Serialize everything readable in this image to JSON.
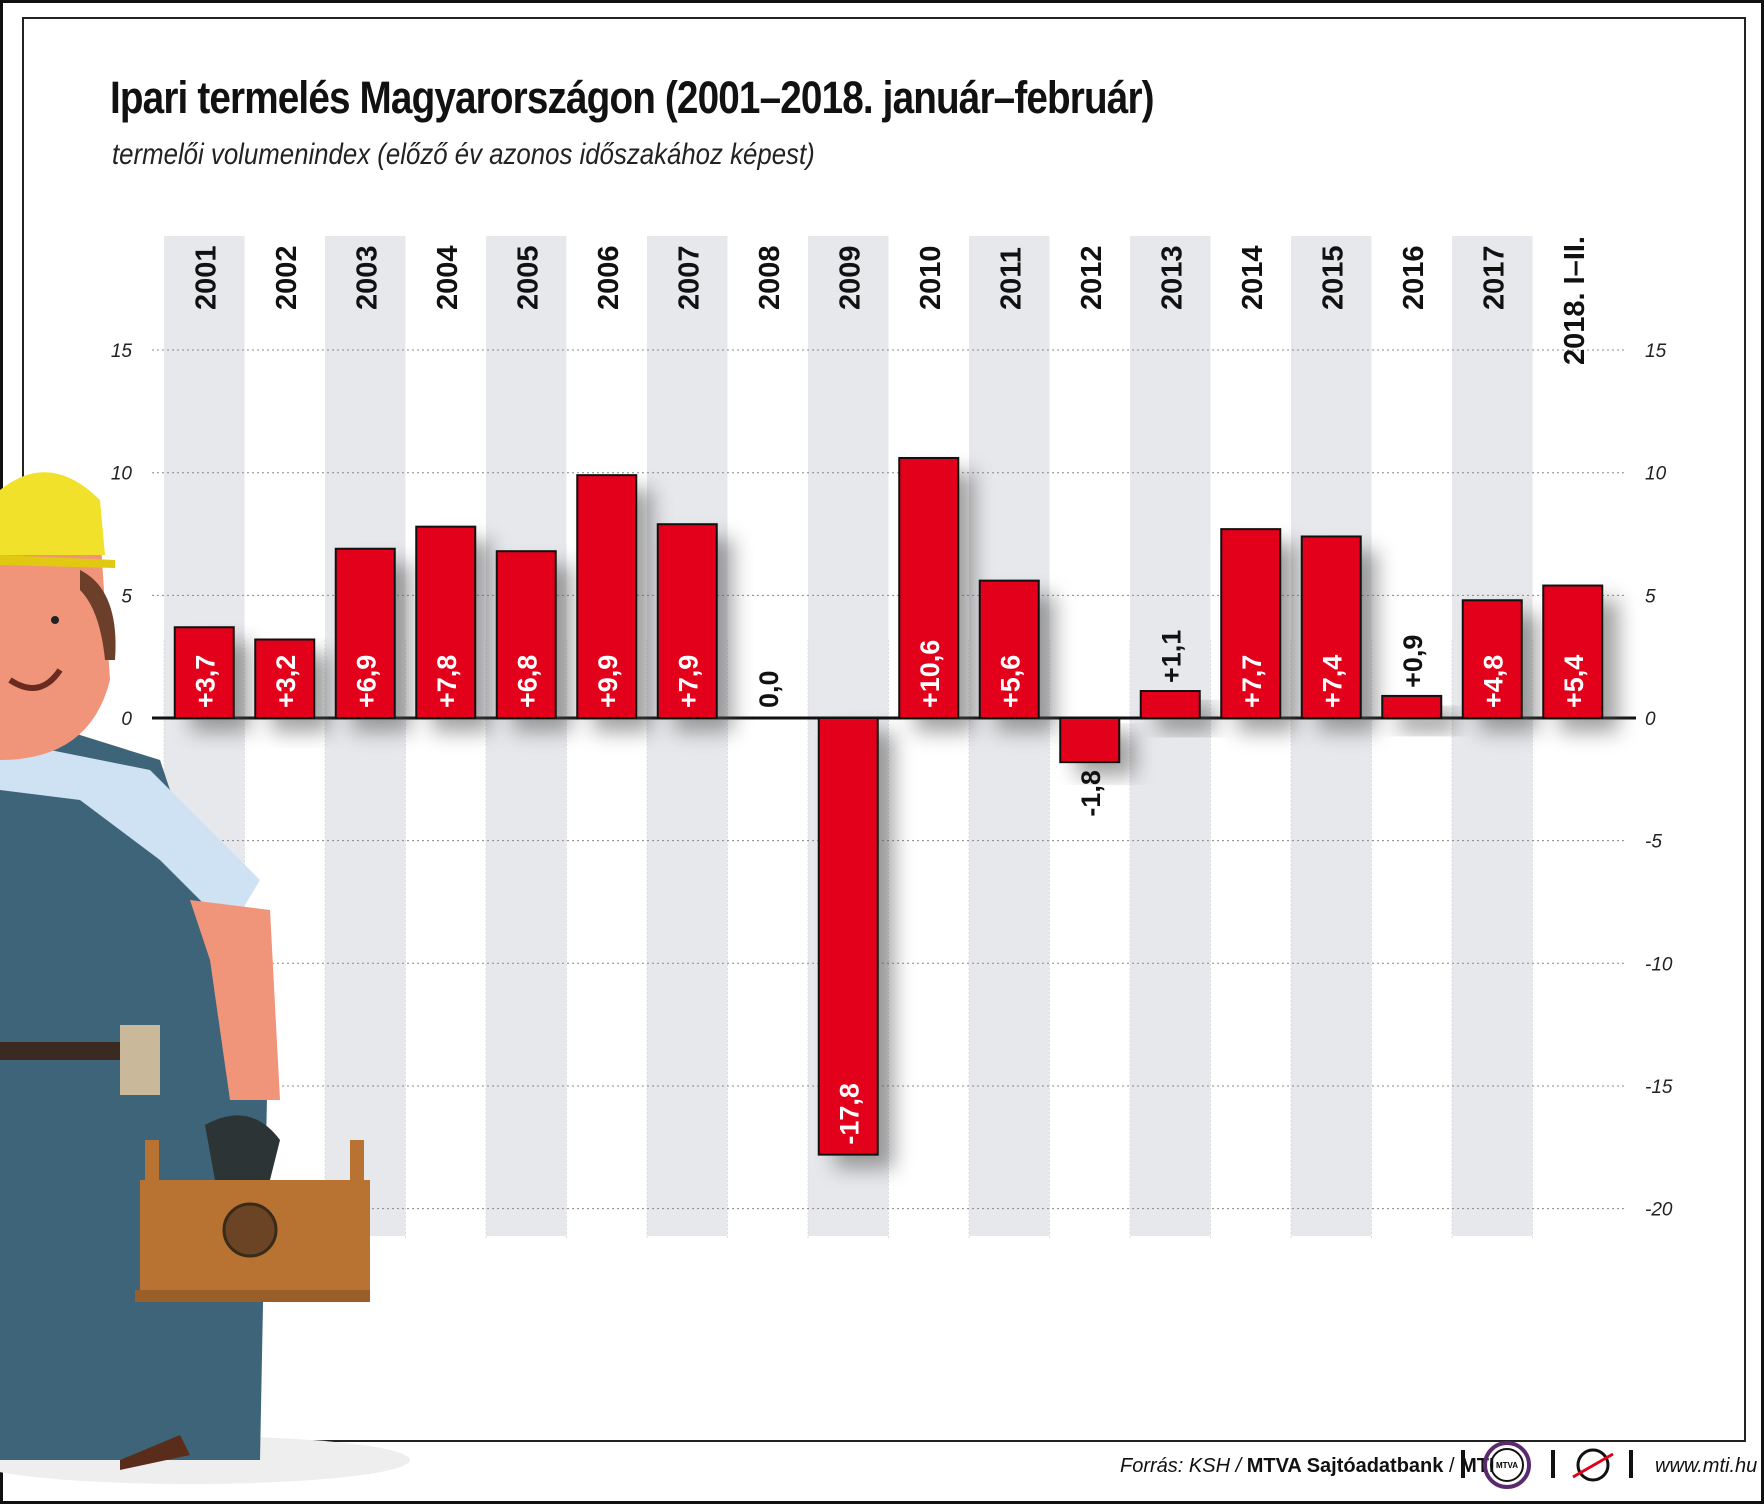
{
  "title": "Ipari termelés Magyarországon (2001–2018. január–február)",
  "subtitle": "termelői volumenindex (előző év azonos időszakához képest)",
  "chart_data": {
    "type": "bar",
    "categories": [
      "2001",
      "2002",
      "2003",
      "2004",
      "2005",
      "2006",
      "2007",
      "2008",
      "2009",
      "2010",
      "2011",
      "2012",
      "2013",
      "2014",
      "2015",
      "2016",
      "2017",
      "2018. I–II."
    ],
    "values": [
      3.7,
      3.2,
      6.9,
      7.8,
      6.8,
      9.9,
      7.9,
      0.0,
      -17.8,
      10.6,
      5.6,
      -1.8,
      1.1,
      7.7,
      7.4,
      0.9,
      4.8,
      5.4
    ],
    "data_labels": [
      "+3,7",
      "+3,2",
      "+6,9",
      "+7,8",
      "+6,8",
      "+9,9",
      "+7,9",
      "0,0",
      "-17,8",
      "+10,6",
      "+5,6",
      "-1,8",
      "+1,1",
      "+7,7",
      "+7,4",
      "+0,9",
      "+4,8",
      "+5,4"
    ],
    "yticks": [
      15,
      10,
      5,
      0,
      -5,
      -10,
      -15,
      -20
    ],
    "ylim": [
      -20,
      15
    ],
    "grid": true,
    "bar_color": "#e2001a",
    "column_shading": "#e6e8eb"
  },
  "footer": {
    "source_prefix": "Forrás: KSH / ",
    "source_bold": "MTVA Sajtóadatbank",
    "sep": " / ",
    "mti": "MTI",
    "logo_mtva": "MTVA",
    "url": "www.mti.hu"
  }
}
